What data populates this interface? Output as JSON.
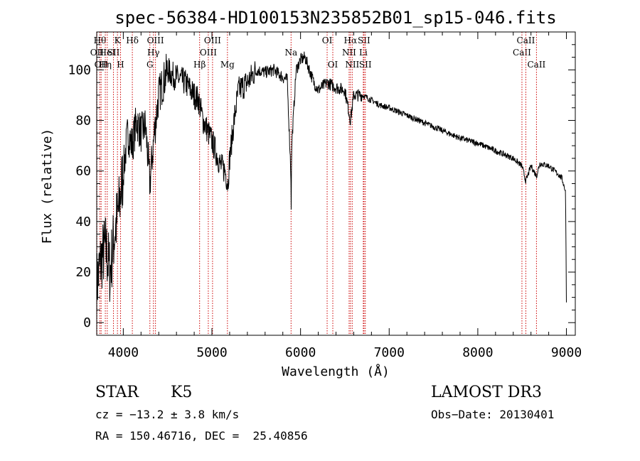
{
  "chart_data": {
    "type": "line",
    "title": "spec-56384-HD100153N235852B01_sp15-046.fits",
    "xlabel": "Wavelength (Å)",
    "ylabel": "Flux (relative)",
    "xlim": [
      3700,
      9100
    ],
    "ylim": [
      -5,
      115
    ],
    "xticks": [
      4000,
      5000,
      6000,
      7000,
      8000,
      9000
    ],
    "yticks": [
      0,
      20,
      40,
      60,
      80,
      100
    ],
    "grid": false,
    "series": [
      {
        "x": [
          3700,
          3750,
          3800,
          3850,
          3900,
          3950,
          4000,
          4050,
          4100,
          4150,
          4200,
          4250,
          4300,
          4350,
          4400,
          4450,
          4500,
          4550,
          4600,
          4700,
          4800,
          4850,
          4900,
          5000,
          5100,
          5150,
          5180,
          5200,
          5250,
          5300,
          5400,
          5500,
          5600,
          5700,
          5800,
          5850,
          5890,
          5895,
          5900,
          5950,
          6000,
          6050,
          6100,
          6150,
          6200,
          6300,
          6400,
          6500,
          6563,
          6600,
          6700,
          6800,
          6900,
          7000,
          7200,
          7400,
          7600,
          7800,
          8000,
          8200,
          8400,
          8498,
          8542,
          8600,
          8662,
          8700,
          8800,
          8900,
          8950,
          8990,
          9000
        ],
        "y": [
          15,
          25,
          30,
          20,
          35,
          45,
          60,
          75,
          70,
          80,
          75,
          78,
          55,
          75,
          90,
          95,
          100,
          98,
          97,
          95,
          90,
          88,
          80,
          72,
          62,
          60,
          55,
          65,
          80,
          92,
          95,
          100,
          99,
          100,
          97,
          96,
          60,
          45,
          70,
          100,
          104,
          105,
          100,
          95,
          92,
          95,
          93,
          92,
          80,
          90,
          90,
          88,
          86,
          85,
          82,
          79,
          76,
          73,
          71,
          68,
          65,
          62,
          56,
          62,
          58,
          63,
          62,
          59,
          57,
          52,
          8
        ]
      }
    ],
    "lines": [
      {
        "x": 3703,
        "row": 1,
        "label": "OII"
      },
      {
        "x": 3736,
        "row": 0,
        "label": "Hθ"
      },
      {
        "x": 3750,
        "row": 2,
        "label": "OII"
      },
      {
        "x": 3797,
        "row": 2,
        "label": "Hη"
      },
      {
        "x": 3819,
        "row": 1,
        "label": "HeI"
      },
      {
        "x": 3889,
        "row": 1,
        "label": "SII"
      },
      {
        "x": 3934,
        "row": 0,
        "label": "K"
      },
      {
        "x": 3969,
        "row": 2,
        "label": "H"
      },
      {
        "x": 4102,
        "row": 0,
        "label": "Hδ"
      },
      {
        "x": 4300,
        "row": 2,
        "label": "G"
      },
      {
        "x": 4340,
        "row": 1,
        "label": "Hγ"
      },
      {
        "x": 4363,
        "row": 0,
        "label": "OIII"
      },
      {
        "x": 4861,
        "row": 2,
        "label": "Hβ"
      },
      {
        "x": 4959,
        "row": 1,
        "label": "OIII"
      },
      {
        "x": 5007,
        "row": 0,
        "label": "OIII"
      },
      {
        "x": 5175,
        "row": 2,
        "label": "Mg"
      },
      {
        "x": 5893,
        "row": 1,
        "label": "Na"
      },
      {
        "x": 6300,
        "row": 0,
        "label": "OI"
      },
      {
        "x": 6364,
        "row": 2,
        "label": "OI"
      },
      {
        "x": 6548,
        "row": 1,
        "label": "NII"
      },
      {
        "x": 6563,
        "row": 0,
        "label": "Hα"
      },
      {
        "x": 6583,
        "row": 2,
        "label": "NII"
      },
      {
        "x": 6708,
        "row": 1,
        "label": "Li"
      },
      {
        "x": 6716,
        "row": 0,
        "label": "SII"
      },
      {
        "x": 6731,
        "row": 2,
        "label": "SII"
      },
      {
        "x": 8498,
        "row": 1,
        "label": "CaII"
      },
      {
        "x": 8542,
        "row": 0,
        "label": "CaII"
      },
      {
        "x": 8662,
        "row": 2,
        "label": "CaII"
      }
    ]
  },
  "info": {
    "class_label": "STAR",
    "subclass": "K5",
    "survey": "LAMOST DR3",
    "cz": "cz = −13.2 ± 3.8 km/s",
    "obs_date": "Obs−Date: 20130401",
    "coords": "RA = 150.46716, DEC =  25.40856"
  }
}
